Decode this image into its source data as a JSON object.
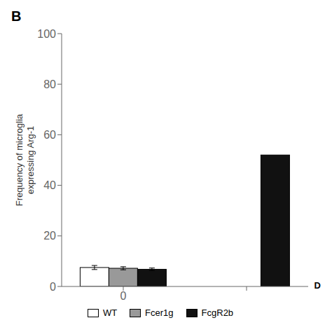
{
  "chart_data": {
    "type": "bar",
    "categories": [
      "0",
      null
    ],
    "ylabel": "Frequency of microglia\nexpressing Arg-1",
    "ylim": [
      0,
      100
    ],
    "yticks": [
      0,
      20,
      40,
      60,
      80,
      100
    ],
    "series": [
      {
        "name": "WT",
        "color": "#ffffff",
        "values": [
          7.5,
          null
        ],
        "errors": [
          0.8,
          null
        ]
      },
      {
        "name": "Fcer1g",
        "color": "#999999",
        "values": [
          7.2,
          null
        ],
        "errors": [
          0.6,
          null
        ]
      },
      {
        "name": "FcgR2b",
        "color": "#111111",
        "values": [
          6.8,
          52
        ],
        "errors": [
          0.5,
          null
        ]
      }
    ],
    "legend": "bottom",
    "annotations": [
      "B",
      "D"
    ]
  }
}
